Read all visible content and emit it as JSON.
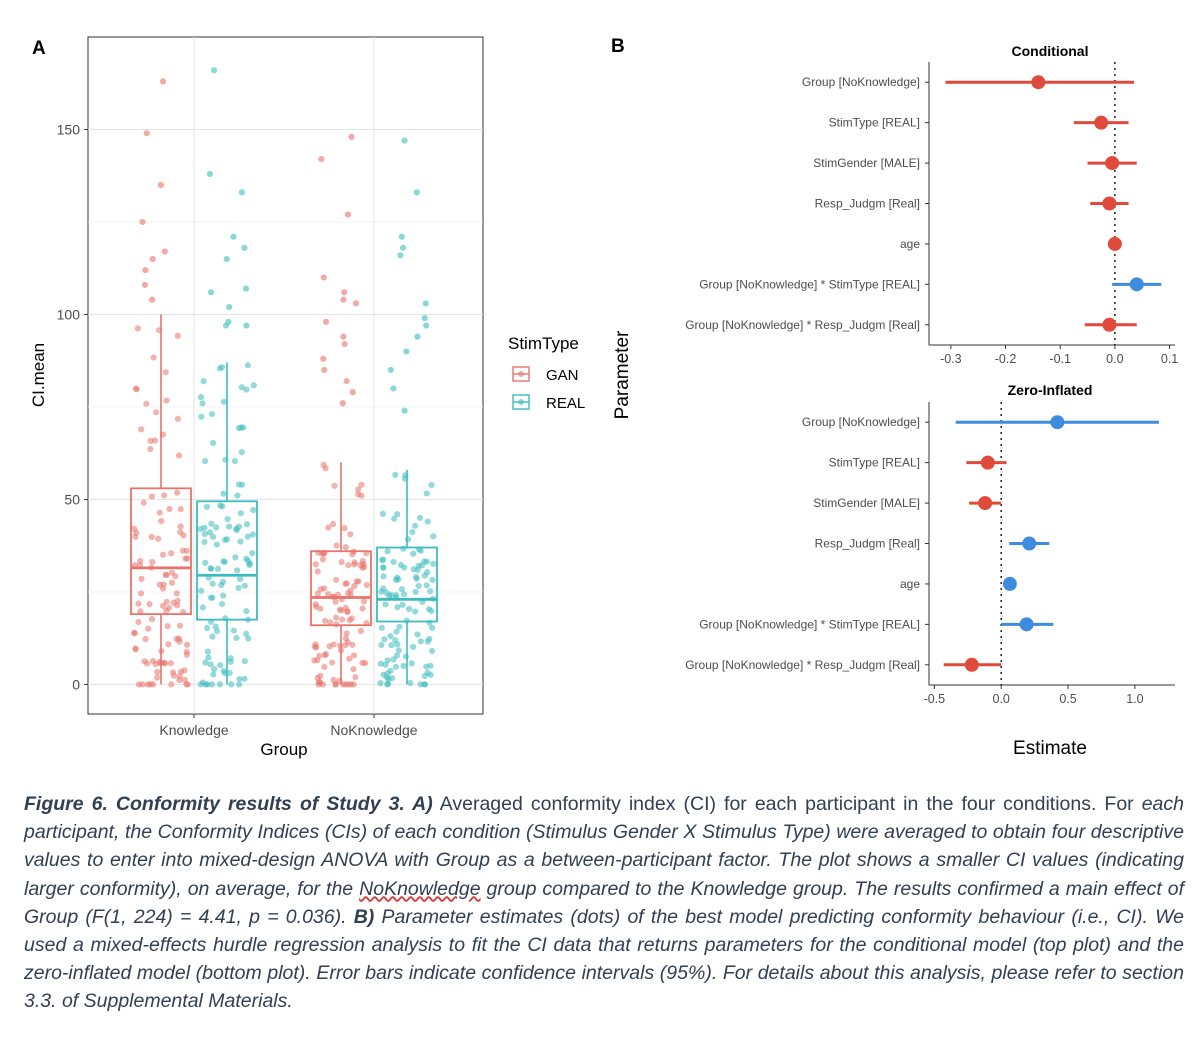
{
  "figure": {
    "panel_a_label": "A",
    "panel_b_label": "B"
  },
  "chart_data": [
    {
      "type": "boxplot",
      "panel": "A",
      "xlabel": "Group",
      "ylabel": "CI.mean",
      "categories": [
        "Knowledge",
        "NoKnowledge"
      ],
      "yticks": [
        0,
        50,
        100,
        150
      ],
      "ylim": [
        -8,
        175
      ],
      "grid": true,
      "legend": {
        "title": "StimType",
        "entries": [
          "GAN",
          "REAL"
        ],
        "placement": "right"
      },
      "colors": {
        "GAN": "#e8736a",
        "REAL": "#3cbcbe"
      },
      "series": [
        {
          "name": "GAN",
          "boxes": [
            {
              "category": "Knowledge",
              "min": 0,
              "q1": 19,
              "median": 31.5,
              "q3": 53,
              "max": 100
            },
            {
              "category": "NoKnowledge",
              "min": 0,
              "q1": 16,
              "median": 23.5,
              "q3": 36,
              "max": 60
            }
          ]
        },
        {
          "name": "REAL",
          "boxes": [
            {
              "category": "Knowledge",
              "min": 0,
              "q1": 17.5,
              "median": 29.5,
              "q3": 49.5,
              "max": 87
            },
            {
              "category": "NoKnowledge",
              "min": 0,
              "q1": 17,
              "median": 23,
              "q3": 37,
              "max": 58
            }
          ]
        }
      ],
      "outliers": [
        {
          "category": "Knowledge",
          "series": "GAN",
          "values": [
            163,
            149,
            135,
            125,
            117,
            115,
            112,
            108,
            104
          ]
        },
        {
          "category": "Knowledge",
          "series": "REAL",
          "values": [
            166,
            138,
            133,
            121,
            118,
            115,
            107,
            106,
            102,
            98,
            97,
            97
          ]
        },
        {
          "category": "NoKnowledge",
          "series": "GAN",
          "values": [
            148,
            142,
            127,
            110,
            106,
            104,
            103,
            98,
            94,
            92,
            88,
            85,
            82,
            79,
            76
          ]
        },
        {
          "category": "NoKnowledge",
          "series": "REAL",
          "values": [
            147,
            133,
            121,
            118,
            116,
            103,
            99,
            97,
            94,
            90,
            85,
            80,
            74
          ]
        }
      ]
    },
    {
      "type": "coefficient",
      "panel": "B",
      "title": "Conditional",
      "xlabel": "Estimate",
      "ylabel": "Parameter",
      "xticks": [
        -0.3,
        -0.2,
        -0.1,
        0.0,
        0.1
      ],
      "xtick_labels": [
        "-0.3",
        "-0.2",
        "-0.1",
        "0.0",
        "0.1"
      ],
      "xlim": [
        -0.34,
        0.11
      ],
      "parameters": [
        {
          "name": "Group [NoKnowledge]",
          "estimate": -0.14,
          "low": -0.31,
          "high": 0.035,
          "color": "red"
        },
        {
          "name": "StimType [REAL]",
          "estimate": -0.025,
          "low": -0.075,
          "high": 0.025,
          "color": "red"
        },
        {
          "name": "StimGender [MALE]",
          "estimate": -0.005,
          "low": -0.05,
          "high": 0.04,
          "color": "red"
        },
        {
          "name": "Resp_Judgm [Real]",
          "estimate": -0.01,
          "low": -0.045,
          "high": 0.025,
          "color": "red"
        },
        {
          "name": "age",
          "estimate": 0.0,
          "low": -0.003,
          "high": 0.003,
          "color": "red"
        },
        {
          "name": "Group [NoKnowledge] * StimType [REAL]",
          "estimate": 0.04,
          "low": -0.005,
          "high": 0.085,
          "color": "blue"
        },
        {
          "name": "Group [NoKnowledge] * Resp_Judgm [Real]",
          "estimate": -0.01,
          "low": -0.055,
          "high": 0.04,
          "color": "red"
        }
      ],
      "colors": {
        "red": "#e04a3a",
        "blue": "#3f8be0"
      }
    },
    {
      "type": "coefficient",
      "panel": "B",
      "title": "Zero-Inflated",
      "xlabel": "Estimate",
      "ylabel": "Parameter",
      "xticks": [
        -0.5,
        0.0,
        0.5,
        1.0
      ],
      "xtick_labels": [
        "-0.5",
        "0.0",
        "0.5",
        "1.0"
      ],
      "xlim": [
        -0.54,
        1.3
      ],
      "parameters": [
        {
          "name": "Group [NoKnowledge]",
          "estimate": 0.42,
          "low": -0.34,
          "high": 1.18,
          "color": "blue"
        },
        {
          "name": "StimType [REAL]",
          "estimate": -0.1,
          "low": -0.26,
          "high": 0.04,
          "color": "red"
        },
        {
          "name": "StimGender [MALE]",
          "estimate": -0.12,
          "low": -0.24,
          "high": 0.0,
          "color": "red"
        },
        {
          "name": "Resp_Judgm [Real]",
          "estimate": 0.21,
          "low": 0.06,
          "high": 0.36,
          "color": "blue"
        },
        {
          "name": "age",
          "estimate": 0.065,
          "low": 0.045,
          "high": 0.085,
          "color": "blue"
        },
        {
          "name": "Group [NoKnowledge] * StimType [REAL]",
          "estimate": 0.19,
          "low": 0.0,
          "high": 0.39,
          "color": "blue"
        },
        {
          "name": "Group [NoKnowledge] * Resp_Judgm [Real]",
          "estimate": -0.22,
          "low": -0.43,
          "high": 0.0,
          "color": "red"
        }
      ],
      "colors": {
        "red": "#e04a3a",
        "blue": "#3f8be0"
      }
    }
  ],
  "caption": {
    "bold_lead": "Figure 6. Conformity results of Study 3. A)",
    "text_a": " Averaged conformity index (CI) for each participant in the four conditions. For",
    "text_b": " each participant, the Conformity Indices (CIs) of each condition (Stimulus Gender X Stimulus Type) were averaged to obtain four descriptive values to enter into mixed-design ANOVA with Group as a between-participant factor. The plot shows a smaller CI values (indicating larger conformity), on average, for the ",
    "underlined": "NoKnowledge",
    "text_c": " group compared to the Knowledge group. The results confirmed a main effect of Group (F(1, 224) = 4.41, p = 0.036).",
    "bold_b": " B)",
    "text_d": " Parameter estimates (dots) of the best model predicting conformity behaviour (i.e., CI). We used a mixed-effects hurdle regression analysis to fit the CI data that returns parameters for the conditional model (top plot) and the zero-inflated model (bottom plot). Error bars indicate confidence intervals (95%). For details about this analysis, please refer to section 3.3. of Supplemental Materials."
  }
}
